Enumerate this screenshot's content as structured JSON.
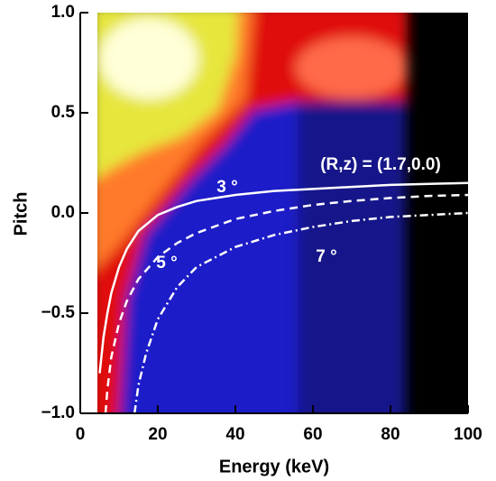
{
  "chart_data": {
    "type": "line",
    "xlabel": "Energy (keV)",
    "ylabel": "Pitch",
    "annotation": "(R,z) = (1.7,0.0)",
    "xlim": [
      0,
      100
    ],
    "ylim": [
      -1,
      1
    ],
    "xticks": [
      0,
      20,
      40,
      60,
      80,
      100
    ],
    "yticks": [
      {
        "value": 1,
        "label": "1.0"
      },
      0.5,
      {
        "value": 0,
        "label": "0.0"
      },
      {
        "value": -0.5,
        "label": "−0.5"
      },
      {
        "value": -1,
        "label": "−1.0"
      }
    ],
    "series": [
      {
        "name": "3 °",
        "color": "#ffffff",
        "dash": "solid",
        "x": [
          5,
          6,
          7,
          8,
          10,
          12,
          15,
          20,
          25,
          30,
          40,
          50,
          60,
          70,
          80,
          90,
          100
        ],
        "values": [
          -0.8,
          -0.62,
          -0.5,
          -0.4,
          -0.27,
          -0.18,
          -0.09,
          -0.01,
          0.03,
          0.06,
          0.09,
          0.11,
          0.12,
          0.13,
          0.14,
          0.145,
          0.15
        ]
      },
      {
        "name": "5 °",
        "color": "#ffffff",
        "dash": "dashed",
        "x": [
          6.5,
          7,
          8,
          10,
          12,
          15,
          20,
          25,
          30,
          40,
          50,
          60,
          70,
          80,
          90,
          100
        ],
        "values": [
          -1,
          -0.88,
          -0.72,
          -0.55,
          -0.44,
          -0.33,
          -0.22,
          -0.15,
          -0.1,
          -0.03,
          0.01,
          0.04,
          0.06,
          0.075,
          0.085,
          0.09
        ]
      },
      {
        "name": "7 °",
        "color": "#ffffff",
        "dash": "dashdot",
        "x": [
          14,
          15,
          17,
          20,
          25,
          30,
          40,
          50,
          60,
          70,
          80,
          90,
          100
        ],
        "values": [
          -1,
          -0.86,
          -0.7,
          -0.53,
          -0.37,
          -0.27,
          -0.17,
          -0.11,
          -0.07,
          -0.04,
          -0.02,
          -0.01,
          0
        ]
      }
    ]
  }
}
